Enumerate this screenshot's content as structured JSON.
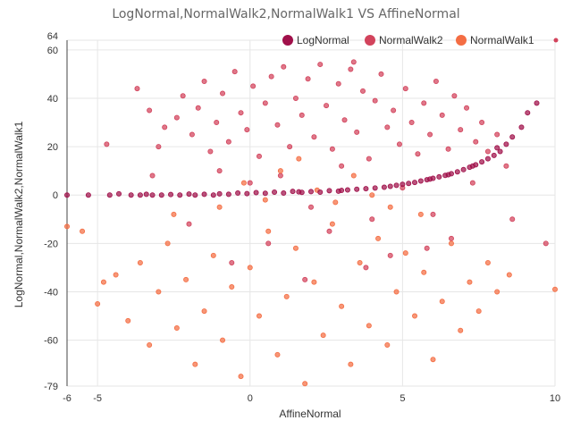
{
  "chart_data": {
    "type": "scatter",
    "title": "LogNormal,NormalWalk2,NormalWalk1 VS AffineNormal",
    "xlabel": "AffineNormal",
    "ylabel": "LogNormal,NormalWalk2,NormalWalk1",
    "xlim": [
      -6,
      10
    ],
    "ylim": [
      -79,
      64
    ],
    "x_ticks": [
      -6,
      -5,
      0,
      5,
      10
    ],
    "y_ticks": [
      64,
      60,
      40,
      20,
      0,
      -20,
      -40,
      -60,
      -79
    ],
    "grid": true,
    "legend_position": "top-right",
    "series": [
      {
        "name": "LogNormal",
        "color": "#a0104a",
        "points": [
          [
            -6,
            0
          ],
          [
            -5.3,
            0
          ],
          [
            -4.6,
            0
          ],
          [
            -4.3,
            0.5
          ],
          [
            -3.9,
            0
          ],
          [
            -3.6,
            0
          ],
          [
            -3.4,
            0.3
          ],
          [
            -3.2,
            0
          ],
          [
            -2.9,
            0
          ],
          [
            -2.6,
            0.2
          ],
          [
            -2.3,
            0
          ],
          [
            -2,
            0.4
          ],
          [
            -1.8,
            0
          ],
          [
            -1.5,
            0.3
          ],
          [
            -1.2,
            0
          ],
          [
            -1,
            0.5
          ],
          [
            -0.7,
            0.3
          ],
          [
            -0.4,
            0.8
          ],
          [
            -0.1,
            0.6
          ],
          [
            0.2,
            1
          ],
          [
            0.5,
            0.7
          ],
          [
            0.8,
            1.2
          ],
          [
            1.1,
            0.8
          ],
          [
            1.4,
            1.5
          ],
          [
            1.7,
            1.1
          ],
          [
            2,
            1.4
          ],
          [
            2.3,
            1.2
          ],
          [
            2.6,
            1.8
          ],
          [
            2.9,
            1.6
          ],
          [
            3.2,
            2.1
          ],
          [
            3.5,
            2.4
          ],
          [
            3.8,
            2.6
          ],
          [
            4.1,
            2.9
          ],
          [
            4.4,
            3.2
          ],
          [
            4.6,
            3.6
          ],
          [
            4.8,
            4
          ],
          [
            5,
            4.4
          ],
          [
            5.2,
            4.8
          ],
          [
            5.4,
            5.2
          ],
          [
            5.6,
            5.8
          ],
          [
            5.8,
            6.3
          ],
          [
            6,
            6.9
          ],
          [
            6.2,
            7.5
          ],
          [
            6.4,
            8.1
          ],
          [
            6.6,
            8.8
          ],
          [
            6.8,
            9.6
          ],
          [
            7,
            10.5
          ],
          [
            7.2,
            11.5
          ],
          [
            7.4,
            12.5
          ],
          [
            7.6,
            13.7
          ],
          [
            7.8,
            15
          ],
          [
            8,
            16.4
          ],
          [
            8.2,
            18
          ],
          [
            8.4,
            21
          ],
          [
            8.6,
            24
          ],
          [
            8.9,
            28
          ],
          [
            9.1,
            34
          ],
          [
            9.4,
            38
          ],
          [
            8.1,
            19.5
          ],
          [
            7.3,
            12
          ],
          [
            6.5,
            8.4
          ],
          [
            5.9,
            6.6
          ],
          [
            3,
            1.9
          ],
          [
            1.6,
            1.3
          ]
        ]
      },
      {
        "name": "NormalWalk2",
        "color": "#d2435c",
        "points": [
          [
            -4.7,
            21
          ],
          [
            -3.7,
            44
          ],
          [
            -3.3,
            35
          ],
          [
            -3,
            20
          ],
          [
            -2.8,
            28
          ],
          [
            -2.4,
            32
          ],
          [
            -2.2,
            41
          ],
          [
            -1.9,
            25
          ],
          [
            -1.7,
            36
          ],
          [
            -1.5,
            47
          ],
          [
            -1.3,
            18
          ],
          [
            -1.1,
            30
          ],
          [
            -0.9,
            42
          ],
          [
            -0.7,
            22
          ],
          [
            -0.5,
            51
          ],
          [
            -0.3,
            34
          ],
          [
            -0.1,
            27
          ],
          [
            0.1,
            45
          ],
          [
            0.3,
            16
          ],
          [
            0.5,
            38
          ],
          [
            0.7,
            49
          ],
          [
            0.9,
            29
          ],
          [
            1.1,
            53
          ],
          [
            1.3,
            20
          ],
          [
            1.5,
            40
          ],
          [
            1.7,
            33
          ],
          [
            1.9,
            48
          ],
          [
            2.1,
            24
          ],
          [
            2.3,
            54
          ],
          [
            2.5,
            37
          ],
          [
            2.7,
            19
          ],
          [
            2.9,
            46
          ],
          [
            3.1,
            31
          ],
          [
            3.3,
            52
          ],
          [
            3.5,
            26
          ],
          [
            3.7,
            43
          ],
          [
            3.9,
            15
          ],
          [
            4.1,
            39
          ],
          [
            4.3,
            50
          ],
          [
            4.5,
            28
          ],
          [
            4.7,
            35
          ],
          [
            4.9,
            21
          ],
          [
            5.1,
            44
          ],
          [
            5.3,
            30
          ],
          [
            5.5,
            17
          ],
          [
            5.7,
            38
          ],
          [
            5.9,
            25
          ],
          [
            6.1,
            47
          ],
          [
            6.3,
            33
          ],
          [
            6.5,
            19
          ],
          [
            6.7,
            41
          ],
          [
            6.9,
            27
          ],
          [
            7.1,
            36
          ],
          [
            7.4,
            22
          ],
          [
            7.6,
            30
          ],
          [
            7.8,
            18
          ],
          [
            8.1,
            25
          ],
          [
            8.4,
            12
          ],
          [
            -1,
            10
          ],
          [
            0,
            5
          ],
          [
            1,
            8
          ],
          [
            2,
            -5
          ],
          [
            3,
            12
          ],
          [
            4,
            -10
          ],
          [
            5,
            3
          ],
          [
            6,
            -8
          ],
          [
            -2,
            -12
          ],
          [
            0.6,
            -20
          ],
          [
            2.6,
            -15
          ],
          [
            4.6,
            -25
          ],
          [
            6.6,
            -18
          ],
          [
            -0.6,
            -28
          ],
          [
            1.8,
            -35
          ],
          [
            3.8,
            -30
          ],
          [
            5.8,
            -22
          ],
          [
            8.6,
            -10
          ],
          [
            9.7,
            -20
          ],
          [
            -3.2,
            8
          ],
          [
            7.3,
            5
          ],
          [
            3.4,
            55
          ]
        ]
      },
      {
        "name": "NormalWalk1",
        "color": "#f46d43",
        "points": [
          [
            -6,
            -13
          ],
          [
            -5,
            -45
          ],
          [
            -4.4,
            -33
          ],
          [
            -4,
            -52
          ],
          [
            -3.6,
            -28
          ],
          [
            -3.3,
            -62
          ],
          [
            -3,
            -40
          ],
          [
            -2.7,
            -20
          ],
          [
            -2.4,
            -55
          ],
          [
            -2.1,
            -35
          ],
          [
            -1.8,
            -70
          ],
          [
            -1.5,
            -48
          ],
          [
            -1.2,
            -25
          ],
          [
            -0.9,
            -60
          ],
          [
            -0.6,
            -38
          ],
          [
            -0.3,
            -75
          ],
          [
            0,
            -30
          ],
          [
            0.3,
            -50
          ],
          [
            0.6,
            -15
          ],
          [
            0.9,
            -66
          ],
          [
            1.2,
            -42
          ],
          [
            1.5,
            -22
          ],
          [
            1.8,
            -78
          ],
          [
            2.1,
            -36
          ],
          [
            2.4,
            -58
          ],
          [
            2.7,
            -12
          ],
          [
            3,
            -46
          ],
          [
            3.3,
            -70
          ],
          [
            3.6,
            -28
          ],
          [
            3.9,
            -54
          ],
          [
            4.2,
            -18
          ],
          [
            4.5,
            -62
          ],
          [
            4.8,
            -40
          ],
          [
            5.1,
            -24
          ],
          [
            5.4,
            -50
          ],
          [
            5.7,
            -32
          ],
          [
            6,
            -68
          ],
          [
            6.3,
            -44
          ],
          [
            6.6,
            -20
          ],
          [
            6.9,
            -56
          ],
          [
            7.2,
            -36
          ],
          [
            7.5,
            -48
          ],
          [
            7.8,
            -28
          ],
          [
            8.1,
            -40
          ],
          [
            8.5,
            -33
          ],
          [
            10,
            -39
          ],
          [
            -5.5,
            -15
          ],
          [
            -4.8,
            -36
          ],
          [
            -0.2,
            5
          ],
          [
            1,
            10
          ],
          [
            2.2,
            2
          ],
          [
            3.4,
            8
          ],
          [
            4.6,
            -5
          ],
          [
            5.6,
            -8
          ],
          [
            0.5,
            -2
          ],
          [
            1.6,
            15
          ],
          [
            -1,
            -5
          ],
          [
            2.8,
            -3
          ],
          [
            4,
            0
          ],
          [
            -2.5,
            -8
          ]
        ]
      }
    ]
  }
}
